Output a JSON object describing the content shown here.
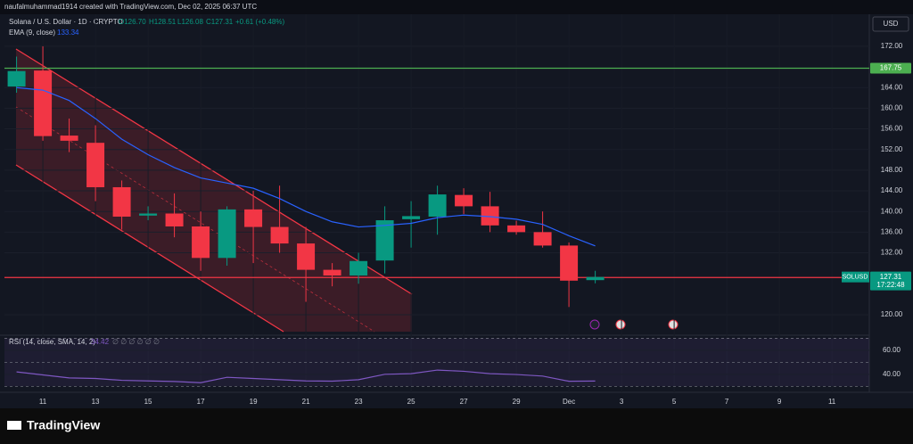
{
  "header": {
    "author_line": "naufalmuhammad1914 created with TradingView.com, Dec 02, 2025 06:37 UTC",
    "currency": "USD"
  },
  "footer": {
    "brand": "TradingView"
  },
  "chart_data": {
    "type": "candlestick",
    "title": "Solana / U.S. Dollar · 1D · CRYPTO",
    "ohlc_legend": [
      "O126.70",
      "H128.51",
      "L126.08",
      "C127.31",
      "+0.61 (+0.48%)"
    ],
    "x": [
      10,
      11,
      12,
      13,
      14,
      15,
      16,
      17,
      18,
      19,
      20,
      21,
      22,
      23,
      24,
      25,
      26,
      27,
      28,
      29,
      30,
      31,
      32
    ],
    "xlim": [
      9.54,
      42.42
    ],
    "xticks": [
      11,
      13,
      15,
      17,
      19,
      21,
      23,
      25,
      27,
      29,
      {
        "value": 31,
        "label": "Dec"
      },
      {
        "value": 33,
        "label": "3"
      },
      {
        "value": 35,
        "label": "5"
      },
      {
        "value": 37,
        "label": "7"
      },
      {
        "value": 39,
        "label": "9"
      },
      {
        "value": 41,
        "label": "11"
      }
    ],
    "open": [
      164.2,
      167.3,
      154.7,
      153.3,
      144.7,
      139.2,
      139.6,
      137.1,
      131.0,
      140.4,
      137.0,
      133.8,
      128.7,
      127.6,
      130.5,
      138.5,
      139.0,
      143.2,
      141.0,
      137.3,
      136.0,
      133.4,
      126.7
    ],
    "high": [
      170.0,
      172.0,
      158.0,
      156.7,
      146.0,
      141.0,
      143.5,
      140.0,
      141.0,
      144.0,
      145.0,
      137.0,
      130.0,
      132.0,
      141.0,
      142.0,
      145.0,
      144.5,
      143.8,
      138.2,
      140.0,
      134.0,
      128.51
    ],
    "low": [
      163.0,
      153.7,
      151.5,
      142.0,
      136.5,
      138.3,
      135.0,
      128.5,
      129.5,
      130.0,
      132.0,
      122.5,
      125.5,
      126.0,
      128.0,
      133.0,
      135.5,
      139.5,
      136.0,
      135.5,
      133.0,
      121.5,
      126.08
    ],
    "close": [
      167.2,
      154.6,
      153.7,
      144.7,
      139.0,
      139.6,
      137.1,
      131.0,
      140.4,
      137.0,
      133.8,
      128.7,
      127.6,
      130.4,
      138.3,
      139.1,
      143.3,
      141.0,
      137.3,
      136.0,
      133.4,
      126.6,
      127.31
    ],
    "up_color": "#089981",
    "down_color": "#f23645",
    "series": [
      {
        "name": "EMA (9, close)",
        "color": "#2962ff",
        "values": [
          164.0,
          163.5,
          161.5,
          158.0,
          154.0,
          151.0,
          148.5,
          146.5,
          145.5,
          144.5,
          142.5,
          140.0,
          138.0,
          137.0,
          137.3,
          137.7,
          138.8,
          139.3,
          139.0,
          138.5,
          137.5,
          135.3,
          133.34
        ]
      }
    ],
    "ylim": [
      116.2,
      178.2
    ],
    "yticks": [
      {
        "value": 172,
        "label": "172.00"
      },
      {
        "value": 164,
        "label": "164.00"
      },
      {
        "value": 160,
        "label": "160.00"
      },
      {
        "value": 156,
        "label": "156.00"
      },
      {
        "value": 152,
        "label": "152.00"
      },
      {
        "value": 148,
        "label": "148.00"
      },
      {
        "value": 144,
        "label": "144.00"
      },
      {
        "value": 140,
        "label": "140.00"
      },
      {
        "value": 136,
        "label": "136.00"
      },
      {
        "value": 132,
        "label": "132.00"
      },
      {
        "value": 120,
        "label": "120.00"
      }
    ],
    "hlines": [
      {
        "value": 167.75,
        "color": "#4caf50"
      },
      {
        "value": 127.21,
        "color": "#f23645"
      }
    ],
    "last_price": {
      "symbol": "SOLUSD",
      "value": 127.31,
      "countdown": "17:22:48"
    },
    "indicator": {
      "type": "line",
      "title": "RSI (14, close, SMA, 14, 2)",
      "extra": "∅ ∅ ∅ ∅ ∅ ∅",
      "color": "#7e57c2",
      "values": [
        42.0,
        39.5,
        37.0,
        36.5,
        35.0,
        34.5,
        34.0,
        33.0,
        37.5,
        36.5,
        35.5,
        34.5,
        34.3,
        35.5,
        40.0,
        40.5,
        43.5,
        42.5,
        40.5,
        39.8,
        38.5,
        34.2,
        34.42
      ],
      "ylim": [
        28,
        71
      ],
      "yticks": [
        {
          "value": 60,
          "label": "60.00"
        },
        {
          "value": 40,
          "label": "40.00"
        }
      ],
      "band": [
        70,
        50,
        30
      ]
    }
  }
}
